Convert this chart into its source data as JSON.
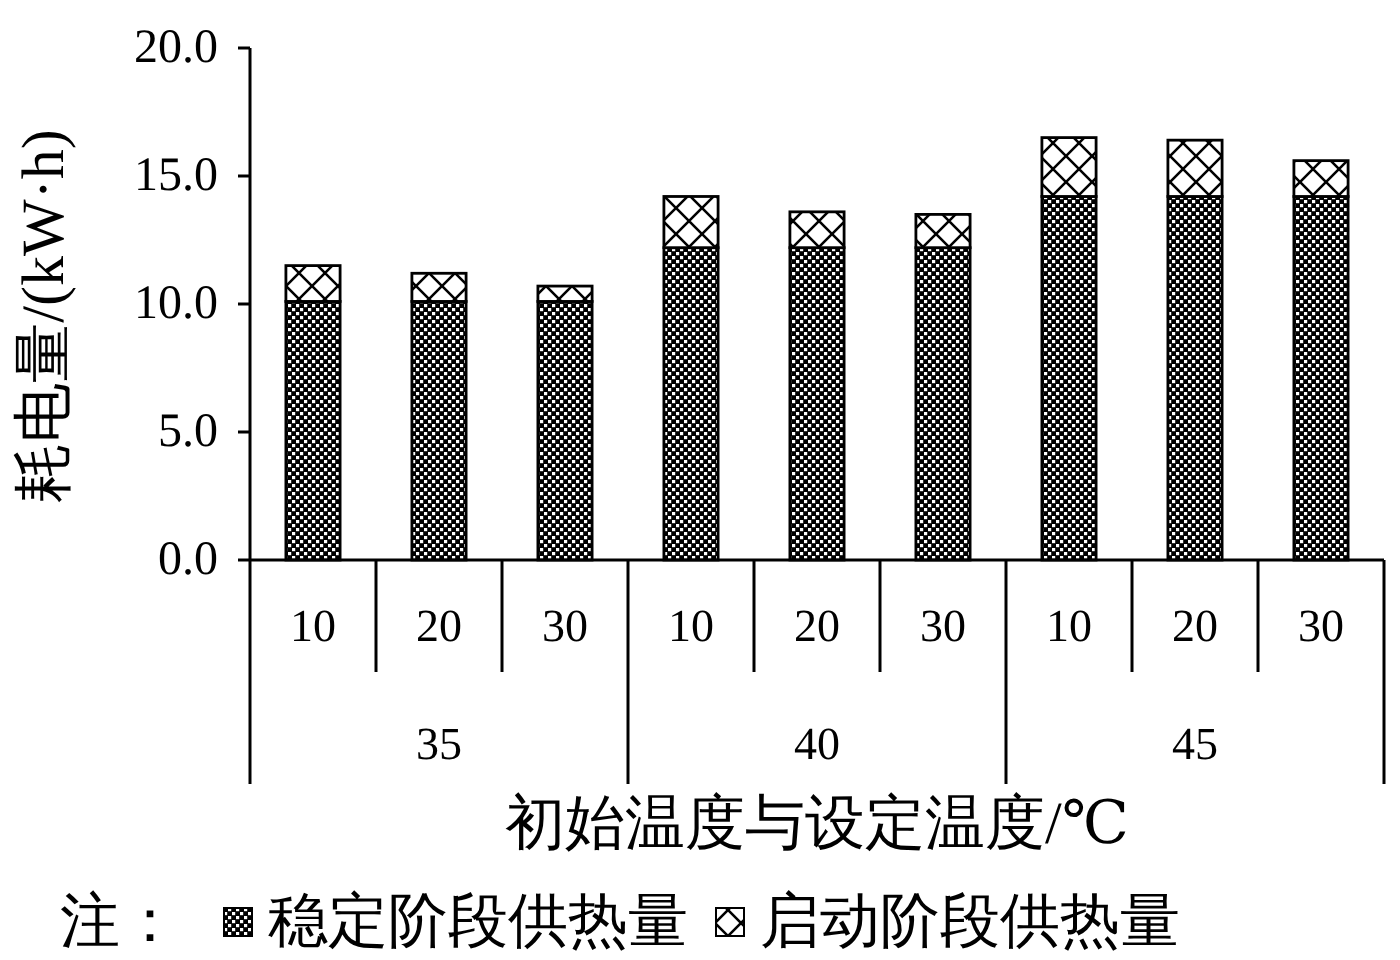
{
  "chart_data": {
    "type": "bar",
    "stacked": true,
    "xlabel": "初始温度与设定温度/℃",
    "ylabel": "耗电量/(kW·h)",
    "legend_title": "注：",
    "legend": "bottom",
    "categories": [
      "10",
      "20",
      "30",
      "10",
      "20",
      "30",
      "10",
      "20",
      "30"
    ],
    "annotations": [
      "35",
      "40",
      "45"
    ],
    "ylim": [
      0,
      20
    ],
    "yticks": [
      {
        "value": 0,
        "label": "0.0"
      },
      {
        "value": 5,
        "label": "5.0"
      },
      {
        "value": 10,
        "label": "10.0"
      },
      {
        "value": 15,
        "label": "15.0"
      },
      {
        "value": 20,
        "label": "20.0"
      }
    ],
    "series": [
      {
        "name": "稳定阶段供热量",
        "color": "#000000",
        "values": [
          10.1,
          10.1,
          10.1,
          12.2,
          12.2,
          12.2,
          14.2,
          14.2,
          14.2
        ]
      },
      {
        "name": "启动阶段供热量",
        "color": "#000000",
        "values": [
          1.4,
          1.1,
          0.6,
          2.0,
          1.4,
          1.3,
          2.3,
          2.2,
          1.4
        ]
      }
    ]
  }
}
